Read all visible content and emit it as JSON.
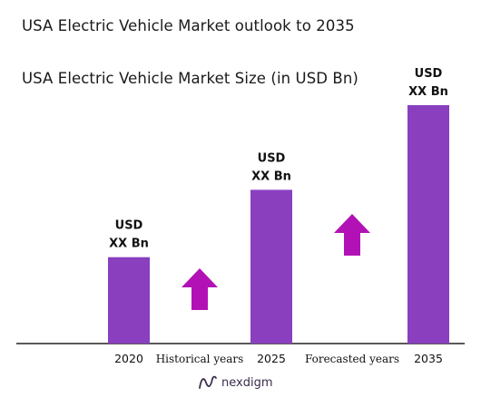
{
  "title": "USA Electric Vehicle Market outlook to 2035",
  "colors": {
    "bar": "#8a3fbf",
    "arrow": "#b212b5",
    "axis": "#222222"
  },
  "chart_data": {
    "type": "bar",
    "title": "USA Electric Vehicle Market Size (in USD Bn)",
    "categories": [
      "2020",
      "2025",
      "2035"
    ],
    "values": [
      1.0,
      1.78,
      2.76
    ],
    "ylim": [
      0,
      2.76
    ],
    "value_labels": [
      {
        "line1": "USD",
        "line2": "XX Bn"
      },
      {
        "line1": "USD",
        "line2": "XX Bn"
      },
      {
        "line1": "USD",
        "line2": "XX Bn"
      }
    ],
    "periods": [
      {
        "label": "Historical years",
        "arrow": "up-arrow-icon"
      },
      {
        "label": "Forecasted years",
        "arrow": "up-arrow-icon"
      }
    ],
    "grid": false
  },
  "logo": {
    "text": "nexdigm",
    "icon": "nexdigm-wave-icon"
  }
}
